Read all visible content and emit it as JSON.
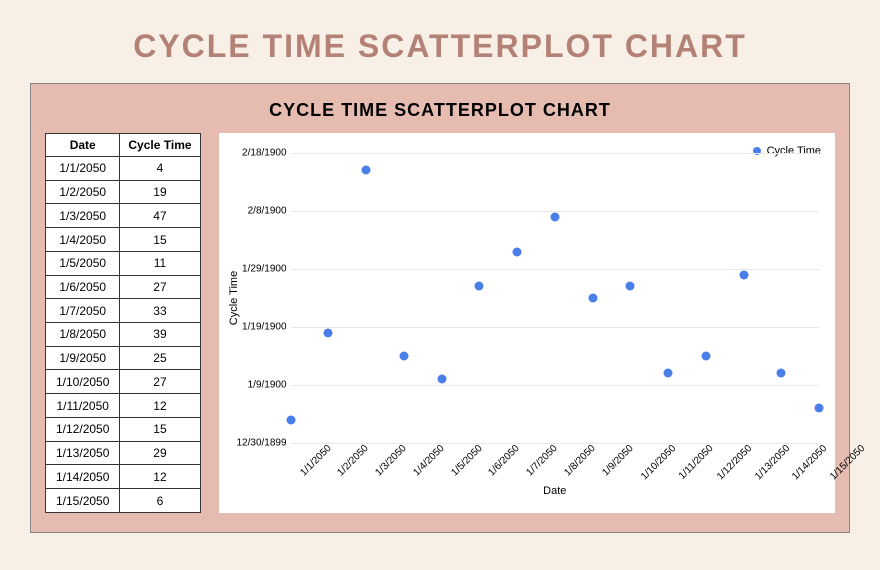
{
  "main_title": "CYCLE TIME SCATTERPLOT CHART",
  "chart_title": "CYCLE TIME SCATTERPLOT CHART",
  "colors": {
    "page_bg": "#f8f0e6",
    "panel_bg": "#e6bcb0",
    "title_color": "#b38176",
    "marker_color": "#4a7ee8",
    "table_border": "#333333",
    "grid_color": "#e8e8e8"
  },
  "table": {
    "headers": [
      "Date",
      "Cycle Time"
    ],
    "rows": [
      [
        "1/1/2050",
        "4"
      ],
      [
        "1/2/2050",
        "19"
      ],
      [
        "1/3/2050",
        "47"
      ],
      [
        "1/4/2050",
        "15"
      ],
      [
        "1/5/2050",
        "11"
      ],
      [
        "1/6/2050",
        "27"
      ],
      [
        "1/7/2050",
        "33"
      ],
      [
        "1/8/2050",
        "39"
      ],
      [
        "1/9/2050",
        "25"
      ],
      [
        "1/10/2050",
        "27"
      ],
      [
        "1/11/2050",
        "12"
      ],
      [
        "1/12/2050",
        "15"
      ],
      [
        "1/13/2050",
        "29"
      ],
      [
        "1/14/2050",
        "12"
      ],
      [
        "1/15/2050",
        "6"
      ]
    ]
  },
  "chart": {
    "type": "scatter",
    "x_label": "Date",
    "y_label": "Cycle Time",
    "legend_label": "Cycle Time",
    "marker_color": "#4a7ee8",
    "marker_size": 9,
    "y_ticks": [
      {
        "label": "12/30/1899",
        "value": 0
      },
      {
        "label": "1/9/1900",
        "value": 10
      },
      {
        "label": "1/19/1900",
        "value": 20
      },
      {
        "label": "1/29/1900",
        "value": 30
      },
      {
        "label": "2/8/1900",
        "value": 40
      },
      {
        "label": "2/18/1900",
        "value": 50
      }
    ],
    "y_min": 0,
    "y_max": 50,
    "x_categories": [
      "1/1/2050",
      "1/2/2050",
      "1/3/2050",
      "1/4/2050",
      "1/5/2050",
      "1/6/2050",
      "1/7/2050",
      "1/8/2050",
      "1/9/2050",
      "1/10/2050",
      "1/11/2050",
      "1/12/2050",
      "1/13/2050",
      "1/14/2050",
      "1/15/2050"
    ],
    "points": [
      {
        "x": 0,
        "y": 4
      },
      {
        "x": 1,
        "y": 19
      },
      {
        "x": 2,
        "y": 47
      },
      {
        "x": 3,
        "y": 15
      },
      {
        "x": 4,
        "y": 11
      },
      {
        "x": 5,
        "y": 27
      },
      {
        "x": 6,
        "y": 33
      },
      {
        "x": 7,
        "y": 39
      },
      {
        "x": 8,
        "y": 25
      },
      {
        "x": 9,
        "y": 27
      },
      {
        "x": 10,
        "y": 12
      },
      {
        "x": 11,
        "y": 15
      },
      {
        "x": 12,
        "y": 29
      },
      {
        "x": 13,
        "y": 12
      },
      {
        "x": 14,
        "y": 6
      }
    ]
  }
}
